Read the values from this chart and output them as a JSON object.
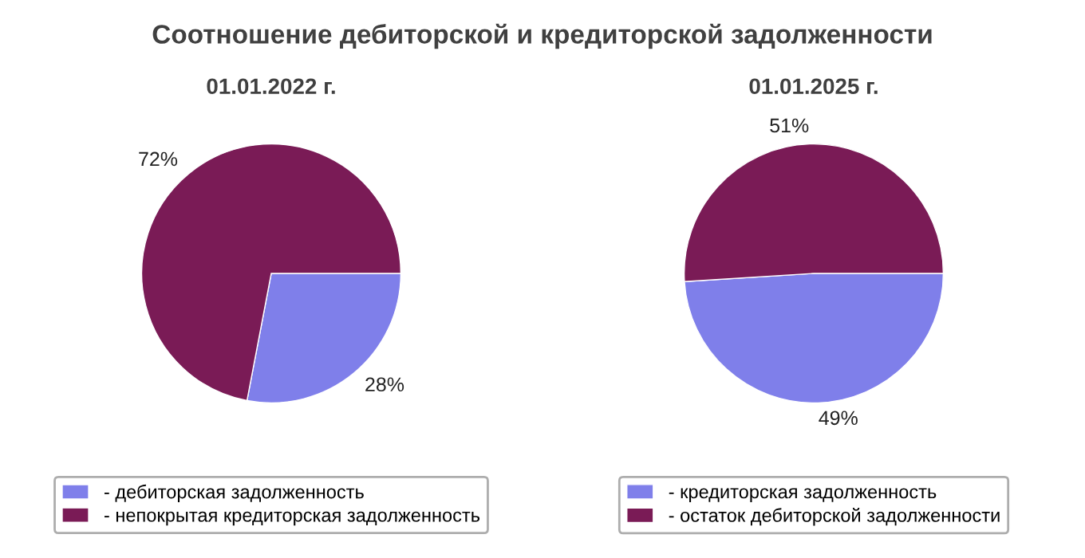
{
  "chart_data": [
    {
      "type": "pie",
      "title": "01.01.2022 г.",
      "annotations": [
        "Соотношение дебиторской и кредиторской задолженности"
      ],
      "categories": [
        "- дебиторская задолженность",
        "- непокрытая кредиторская задолженность"
      ],
      "values": [
        28,
        72
      ],
      "colors": [
        "#7f7fea",
        "#7a1b56"
      ],
      "value_labels": [
        "28%",
        "72%"
      ],
      "legend": "bottom"
    },
    {
      "type": "pie",
      "title": "01.01.2025 г.",
      "categories": [
        "- кредиторская задолженность",
        "- остаток дебиторской задолженности"
      ],
      "values": [
        49,
        51
      ],
      "colors": [
        "#7f7fea",
        "#7a1b56"
      ],
      "value_labels": [
        "49%",
        "51%"
      ],
      "legend": "bottom"
    }
  ]
}
